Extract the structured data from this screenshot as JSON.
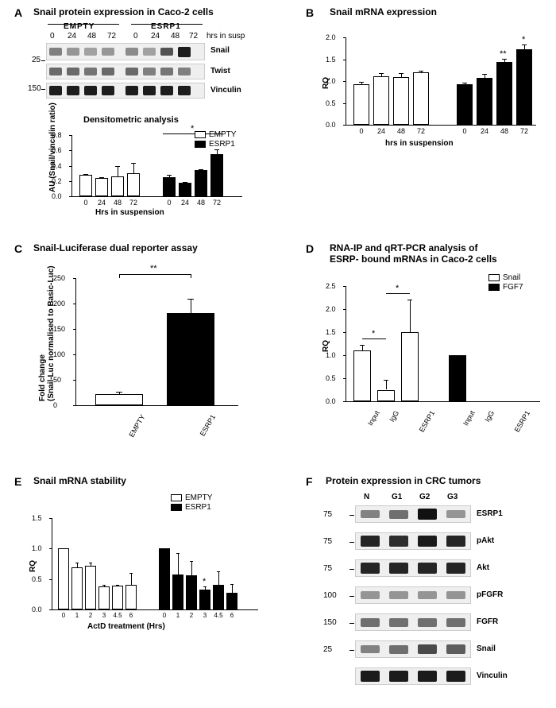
{
  "panelA": {
    "label": "A",
    "title": "Snail protein expression in Caco-2 cells",
    "groups": [
      "EMPTY",
      "ESRP1"
    ],
    "timepoints": [
      "0",
      "24",
      "48",
      "72"
    ],
    "timepoint_label": "hrs in susp",
    "proteins": [
      "Snail",
      "Twist",
      "Vinculin"
    ],
    "markers": [
      "25",
      "150"
    ],
    "densito_title": "Densitometric analysis",
    "densito_ylabel": "AU (Snail/vinculin ratio)",
    "densito_xlabel": "Hrs in suspension",
    "densito_ylim": [
      0,
      0.8
    ],
    "densito_yticks": [
      "0.0",
      "0.2",
      "0.4",
      "0.6",
      "0.8"
    ],
    "densito_empty": [
      0.28,
      0.24,
      0.26,
      0.3
    ],
    "densito_empty_err": [
      0.01,
      0.01,
      0.14,
      0.14
    ],
    "densito_esrp1": [
      0.25,
      0.18,
      0.34,
      0.55
    ],
    "densito_esrp1_err": [
      0.03,
      0.01,
      0.01,
      0.06
    ],
    "sig_marker": "*",
    "legend": [
      "EMPTY",
      "ESRP1"
    ],
    "colors": {
      "empty": "#ffffff",
      "esrp1": "#000000"
    }
  },
  "panelB": {
    "label": "B",
    "title": "Snail mRNA expression",
    "ylabel": "RQ",
    "xlabel": "hrs in suspension",
    "ylim": [
      0,
      2.0
    ],
    "yticks": [
      "0.0",
      "0.5",
      "1.0",
      "1.5",
      "2.0"
    ],
    "xticks": [
      "0",
      "24",
      "48",
      "72",
      "0",
      "24",
      "48",
      "72"
    ],
    "empty_vals": [
      0.92,
      1.11,
      1.09,
      1.2
    ],
    "empty_err": [
      0.06,
      0.07,
      0.09,
      0.03
    ],
    "esrp1_vals": [
      0.93,
      1.08,
      1.43,
      1.72
    ],
    "esrp1_err": [
      0.03,
      0.08,
      0.08,
      0.12
    ],
    "sig48": "**",
    "sig72": "*"
  },
  "panelC": {
    "label": "C",
    "title": "Snail-Luciferase dual reporter assay",
    "ylabel": "Fold change\n(Snail-Luc normalised to Basic-Luc)",
    "ylim": [
      0,
      250
    ],
    "yticks": [
      "0",
      "50",
      "100",
      "150",
      "200",
      "250"
    ],
    "xticks": [
      "EMPTY",
      "ESRP1"
    ],
    "vals": [
      22,
      182
    ],
    "err": [
      5,
      27
    ],
    "sig": "**",
    "colors": [
      "#ffffff",
      "#000000"
    ]
  },
  "panelD": {
    "label": "D",
    "title": "RNA-IP and qRT-PCR analysis of\nESRP- bound mRNAs in Caco-2 cells",
    "ylabel": "RQ",
    "ylim": [
      0,
      2.5
    ],
    "yticks": [
      "0.0",
      "0.5",
      "1.0",
      "1.5",
      "2.0",
      "2.5"
    ],
    "xticks": [
      "Input",
      "IgG",
      "ESRP1",
      "Input",
      "IgG",
      "ESRP1"
    ],
    "legend": [
      "Snail",
      "FGF7"
    ],
    "snail_vals": [
      1.1,
      0.25,
      1.5
    ],
    "snail_err": [
      0.13,
      0.22,
      0.7
    ],
    "fgf7_vals": [
      1.0,
      0.0,
      0.0
    ],
    "fgf7_err": [
      0.0,
      0.0,
      0.0
    ],
    "sig1": "*",
    "sig2": "*"
  },
  "panelE": {
    "label": "E",
    "title": "Snail mRNA stability",
    "ylabel": "RQ",
    "xlabel": "ActD treatment (Hrs)",
    "ylim": [
      0,
      1.5
    ],
    "yticks": [
      "0.0",
      "0.5",
      "1.0",
      "1.5"
    ],
    "xticks": [
      "0",
      "1",
      "2",
      "3",
      "4.5",
      "6",
      "0",
      "1",
      "2",
      "3",
      "4.5",
      "6"
    ],
    "legend": [
      "EMPTY",
      "ESRP1"
    ],
    "empty_vals": [
      1.0,
      0.69,
      0.72,
      0.38,
      0.39,
      0.4
    ],
    "empty_err": [
      0.0,
      0.08,
      0.05,
      0.02,
      0.02,
      0.2
    ],
    "esrp1_vals": [
      1.0,
      0.57,
      0.56,
      0.32,
      0.4,
      0.28
    ],
    "esrp1_err": [
      0.0,
      0.35,
      0.23,
      0.06,
      0.22,
      0.14
    ],
    "sig": "*"
  },
  "panelF": {
    "label": "F",
    "title": "Protein expression in CRC tumors",
    "lanes": [
      "N",
      "G1",
      "G2",
      "G3"
    ],
    "proteins": [
      "ESRP1",
      "pAkt",
      "Akt",
      "pFGFR",
      "FGFR",
      "Snail",
      "Vinculin"
    ],
    "markers": [
      "75",
      "75",
      "75",
      "100",
      "150",
      "25",
      ""
    ],
    "band_intensity": {
      "ESRP1": [
        0.4,
        0.5,
        1.0,
        0.3
      ],
      "pAkt": [
        0.9,
        0.85,
        0.95,
        0.9
      ],
      "Akt": [
        0.9,
        0.9,
        0.9,
        0.9
      ],
      "pFGFR": [
        0.3,
        0.3,
        0.3,
        0.3
      ],
      "FGFR": [
        0.5,
        0.5,
        0.5,
        0.5
      ],
      "Snail": [
        0.4,
        0.5,
        0.7,
        0.6
      ],
      "Vinculin": [
        0.95,
        0.95,
        0.95,
        0.95
      ]
    }
  }
}
